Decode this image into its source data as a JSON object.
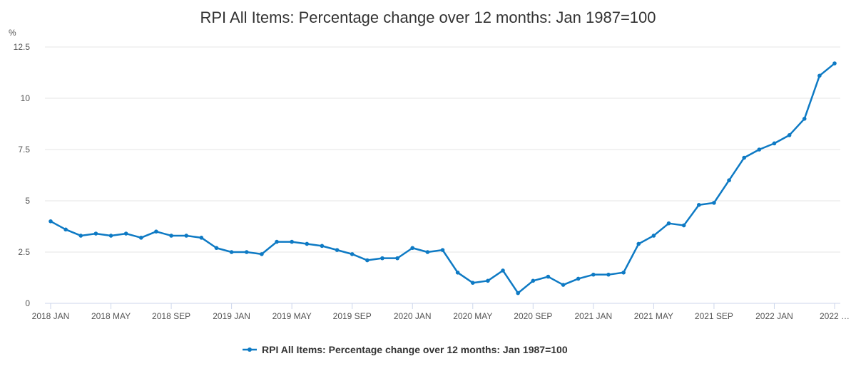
{
  "chart_data": {
    "type": "line",
    "title": "RPI All Items: Percentage change over 12 months: Jan 1987=100",
    "y_unit": "%",
    "ylim": [
      0,
      12.5
    ],
    "y_ticks": [
      0,
      2.5,
      5,
      7.5,
      10,
      12.5
    ],
    "y_tick_labels": [
      "0",
      "2.5",
      "5",
      "7.5",
      "10",
      "12.5"
    ],
    "x_tick_labels": [
      "2018 JAN",
      "2018 MAY",
      "2018 SEP",
      "2019 JAN",
      "2019 MAY",
      "2019 SEP",
      "2020 JAN",
      "2020 MAY",
      "2020 SEP",
      "2021 JAN",
      "2021 MAY",
      "2021 SEP",
      "2022 JAN",
      "2022 …"
    ],
    "x_tick_indices": [
      0,
      4,
      8,
      12,
      16,
      20,
      24,
      28,
      32,
      36,
      40,
      44,
      48,
      52
    ],
    "x": [
      "2018 JAN",
      "2018 FEB",
      "2018 MAR",
      "2018 APR",
      "2018 MAY",
      "2018 JUN",
      "2018 JUL",
      "2018 AUG",
      "2018 SEP",
      "2018 OCT",
      "2018 NOV",
      "2018 DEC",
      "2019 JAN",
      "2019 FEB",
      "2019 MAR",
      "2019 APR",
      "2019 MAY",
      "2019 JUN",
      "2019 JUL",
      "2019 AUG",
      "2019 SEP",
      "2019 OCT",
      "2019 NOV",
      "2019 DEC",
      "2020 JAN",
      "2020 FEB",
      "2020 MAR",
      "2020 APR",
      "2020 MAY",
      "2020 JUN",
      "2020 JUL",
      "2020 AUG",
      "2020 SEP",
      "2020 OCT",
      "2020 NOV",
      "2020 DEC",
      "2021 JAN",
      "2021 FEB",
      "2021 MAR",
      "2021 APR",
      "2021 MAY",
      "2021 JUN",
      "2021 JUL",
      "2021 AUG",
      "2021 SEP",
      "2021 OCT",
      "2021 NOV",
      "2021 DEC",
      "2022 JAN",
      "2022 FEB",
      "2022 MAR",
      "2022 APR",
      "2022 MAY"
    ],
    "series": [
      {
        "name": "RPI All Items: Percentage change over 12 months: Jan 1987=100",
        "color": "#206095",
        "values": [
          4.0,
          3.6,
          3.3,
          3.4,
          3.3,
          3.4,
          3.2,
          3.5,
          3.3,
          3.3,
          3.2,
          2.7,
          2.5,
          2.5,
          2.4,
          3.0,
          3.0,
          2.9,
          2.8,
          2.6,
          2.4,
          2.1,
          2.2,
          2.2,
          2.7,
          2.5,
          2.6,
          1.5,
          1.0,
          1.1,
          1.6,
          0.5,
          1.1,
          1.3,
          0.9,
          1.2,
          1.4,
          1.4,
          1.5,
          2.9,
          3.3,
          3.9,
          3.8,
          4.8,
          4.9,
          6.0,
          7.1,
          7.5,
          7.8,
          8.2,
          9.0,
          11.1,
          11.7
        ]
      }
    ],
    "grid": true,
    "legend_position": "bottom-center"
  },
  "colors": {
    "line": "#0e7ac4",
    "grid": "#e6e6e6",
    "axis": "#ccd6eb"
  }
}
